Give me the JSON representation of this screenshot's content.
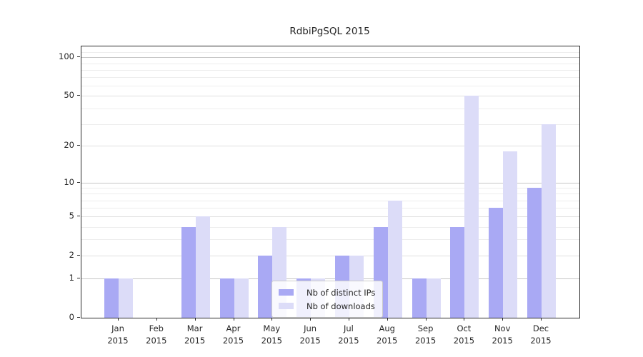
{
  "title": "RdbiPgSQL 2015",
  "legend": {
    "items": [
      {
        "label": "Nb of distinct IPs",
        "color": "#a9a9f4"
      },
      {
        "label": "Nb of downloads",
        "color": "#dcdcf8"
      }
    ]
  },
  "y_axis": {
    "tick_labels": [
      "0",
      "1",
      "2",
      "5",
      "10",
      "20",
      "50",
      "100"
    ]
  },
  "chart_data": {
    "type": "bar",
    "title": "RdbiPgSQL 2015",
    "categories": [
      "Jan 2015",
      "Feb 2015",
      "Mar 2015",
      "Apr 2015",
      "May 2015",
      "Jun 2015",
      "Jul 2015",
      "Aug 2015",
      "Sep 2015",
      "Oct 2015",
      "Nov 2015",
      "Dec 2015"
    ],
    "series": [
      {
        "name": "Nb of distinct IPs",
        "color": "#a9a9f4",
        "values": [
          1,
          0,
          4,
          1,
          2,
          1,
          2,
          4,
          1,
          4,
          6,
          9
        ]
      },
      {
        "name": "Nb of downloads",
        "color": "#dcdcf8",
        "values": [
          1,
          0,
          5,
          1,
          4,
          1,
          2,
          7,
          1,
          50,
          18,
          30
        ]
      }
    ],
    "xlabel": "",
    "ylabel": "",
    "yscale": "log1p",
    "yticks": [
      0,
      1,
      2,
      5,
      10,
      20,
      50,
      100
    ],
    "minor_grid_values": [
      3,
      4,
      6,
      7,
      8,
      9,
      30,
      40,
      60,
      70,
      80,
      90,
      110
    ],
    "ylim": [
      0,
      121
    ],
    "grid": true,
    "legend_position": "lower-center"
  }
}
